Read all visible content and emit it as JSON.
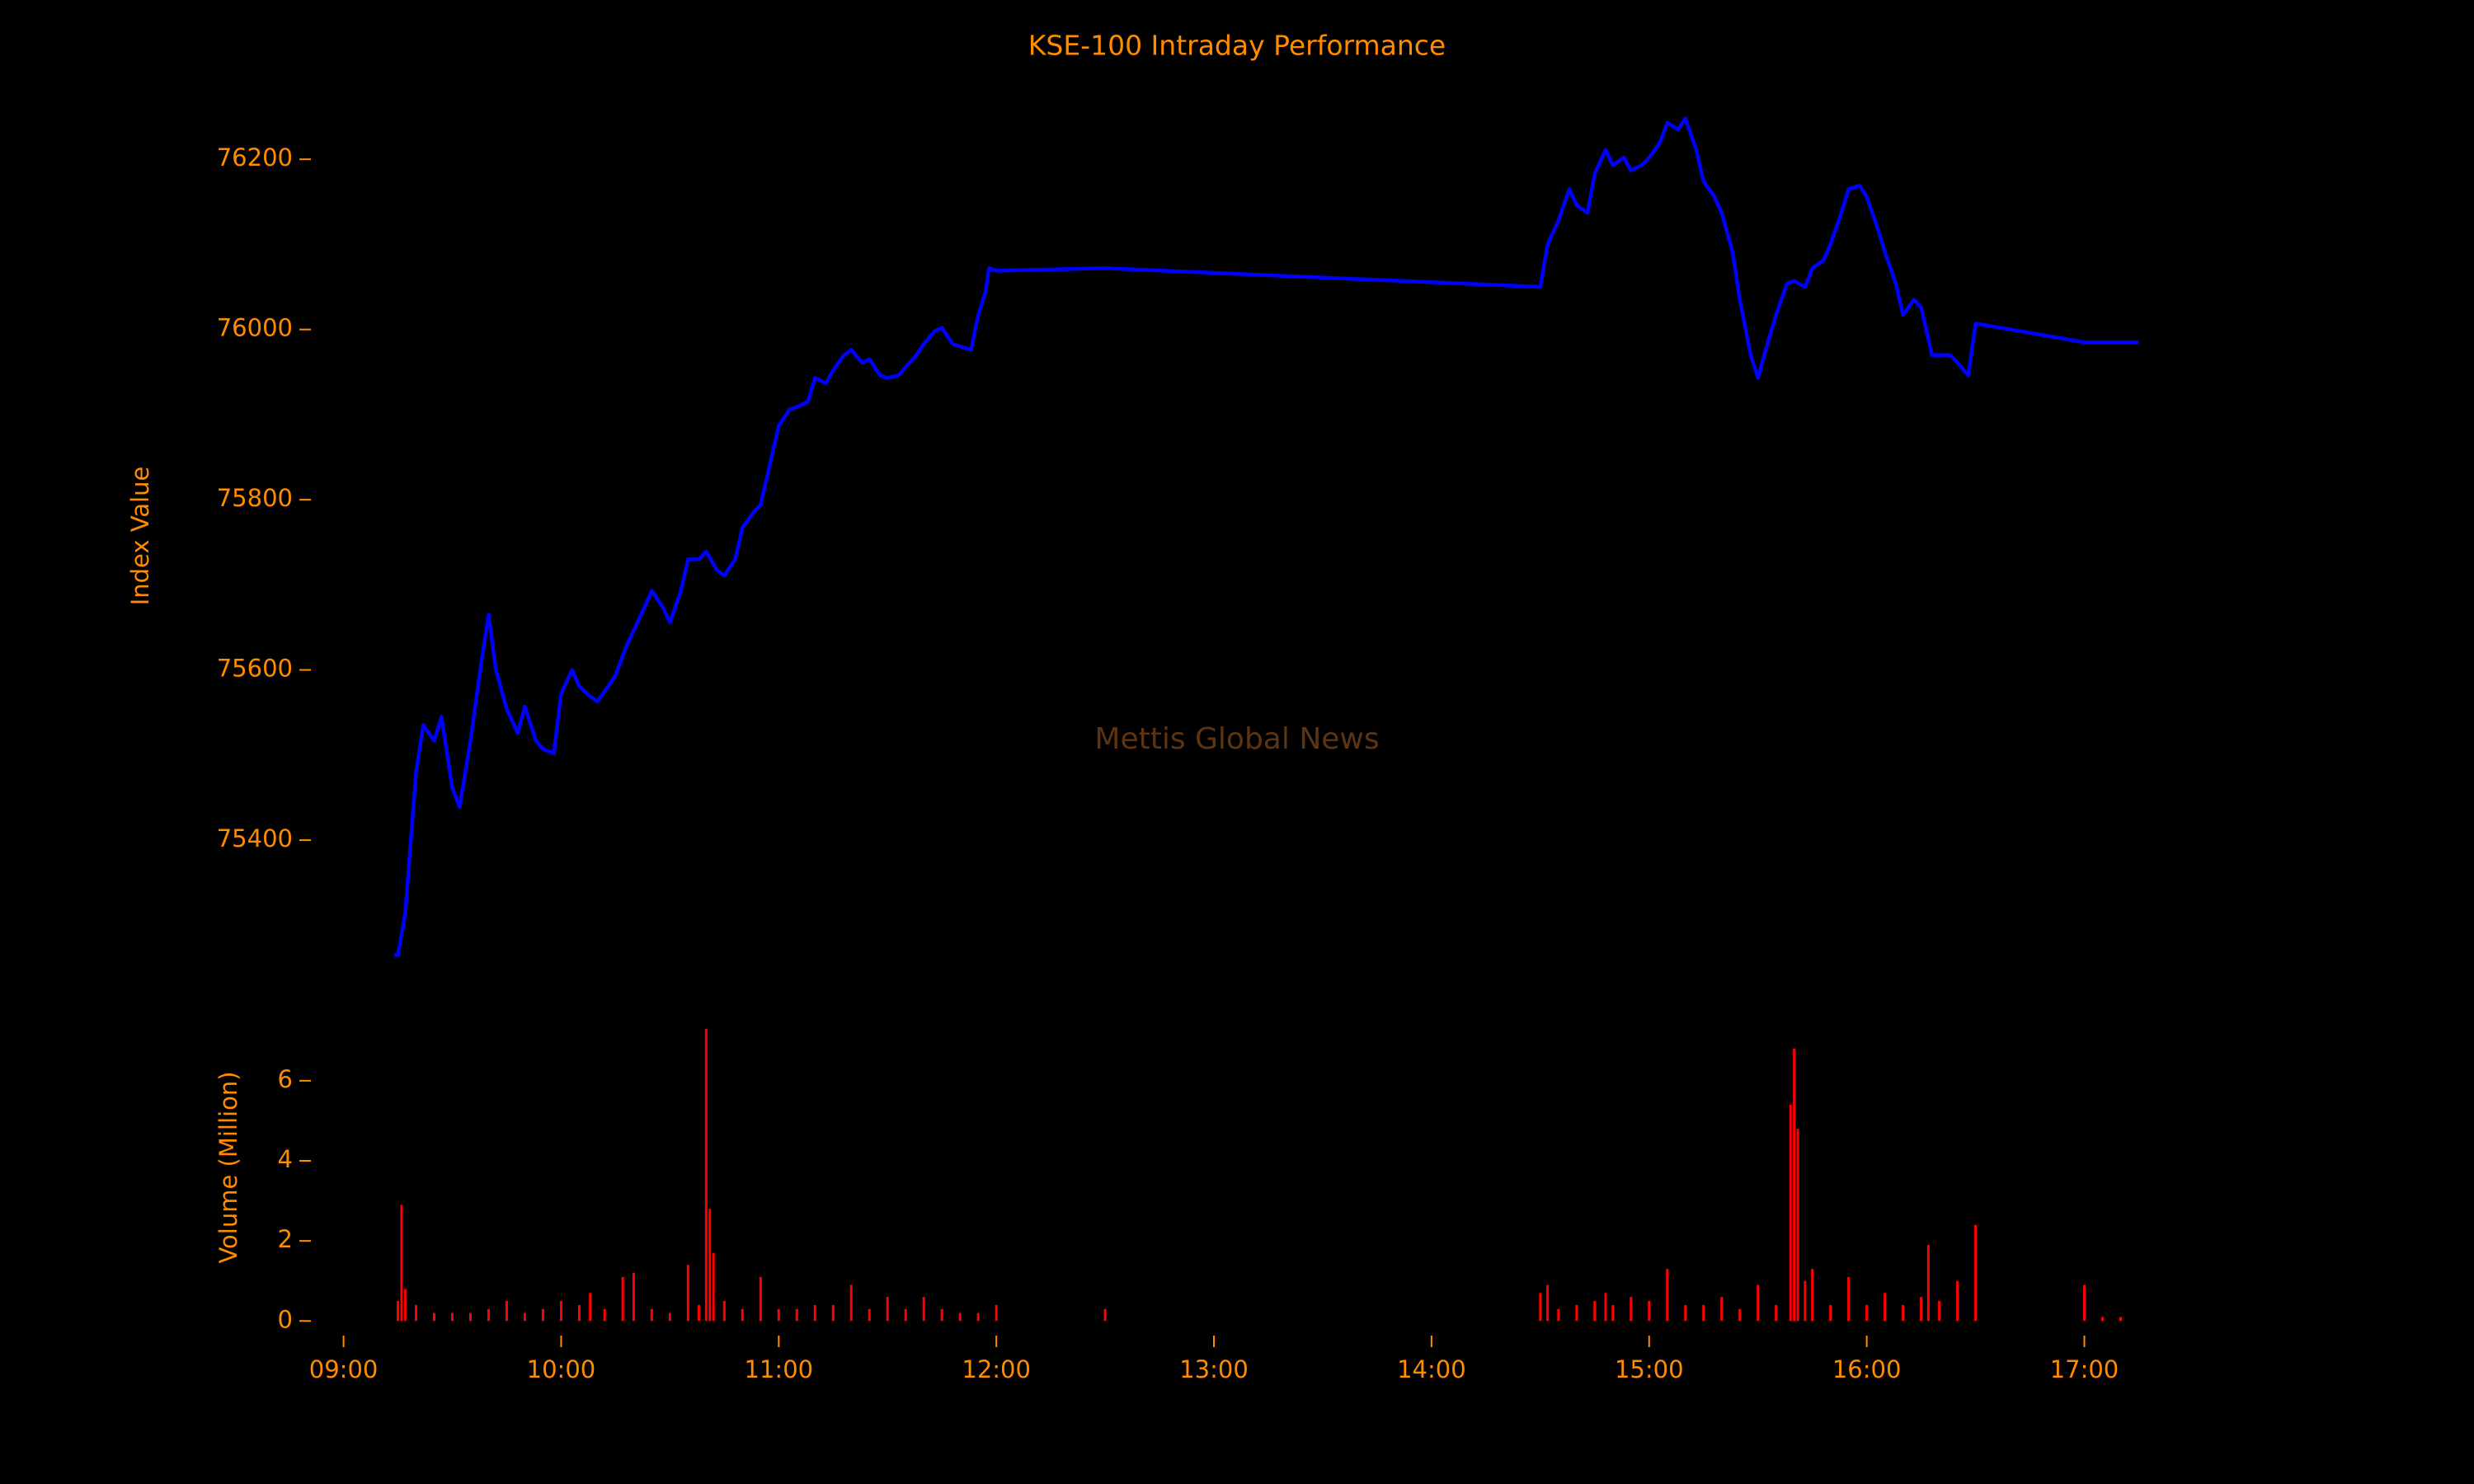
{
  "chart_data": [
    {
      "type": "line",
      "title": "KSE-100 Intraday Performance",
      "ylabel": "Index Value",
      "watermark": "Mettis Global News",
      "xlim": [
        "08:51",
        "17:39"
      ],
      "ylim": [
        75216,
        76299
      ],
      "yticks": [
        75400,
        75600,
        75800,
        76000,
        76200
      ],
      "x": [
        "09:14",
        "09:15",
        "09:17",
        "09:20",
        "09:22",
        "09:25",
        "09:27",
        "09:30",
        "09:32",
        "09:35",
        "09:38",
        "09:40",
        "09:42",
        "09:45",
        "09:48",
        "09:50",
        "09:53",
        "09:55",
        "09:58",
        "10:00",
        "10:03",
        "10:05",
        "10:08",
        "10:10",
        "10:13",
        "10:15",
        "10:18",
        "10:20",
        "10:23",
        "10:25",
        "10:28",
        "10:30",
        "10:33",
        "10:35",
        "10:38",
        "10:40",
        "10:43",
        "10:45",
        "10:48",
        "10:50",
        "10:53",
        "10:55",
        "10:58",
        "11:00",
        "11:03",
        "11:05",
        "11:08",
        "11:10",
        "11:13",
        "11:15",
        "11:18",
        "11:20",
        "11:23",
        "11:25",
        "11:28",
        "11:30",
        "11:33",
        "11:35",
        "11:38",
        "11:40",
        "11:43",
        "11:45",
        "11:48",
        "11:50",
        "11:53",
        "11:55",
        "11:57",
        "11:58",
        "12:00",
        "12:30",
        "14:30",
        "14:32",
        "14:35",
        "14:38",
        "14:40",
        "14:43",
        "14:45",
        "14:48",
        "14:50",
        "14:53",
        "14:55",
        "14:58",
        "15:00",
        "15:03",
        "15:05",
        "15:08",
        "15:10",
        "15:13",
        "15:15",
        "15:18",
        "15:20",
        "15:23",
        "15:25",
        "15:28",
        "15:30",
        "15:33",
        "15:35",
        "15:38",
        "15:40",
        "15:43",
        "15:45",
        "15:48",
        "15:50",
        "15:53",
        "15:55",
        "15:58",
        "16:00",
        "16:03",
        "16:05",
        "16:08",
        "16:10",
        "16:13",
        "16:15",
        "16:18",
        "16:20",
        "16:23",
        "16:25",
        "16:28",
        "16:30",
        "17:00",
        "17:15"
      ],
      "series": [
        {
          "name": "KSE-100",
          "color": "#0000ff",
          "values": [
            75265,
            75265,
            75313,
            75480,
            75535,
            75517,
            75545,
            75461,
            75439,
            75517,
            75609,
            75665,
            75600,
            75554,
            75526,
            75557,
            75517,
            75507,
            75502,
            75572,
            75600,
            75581,
            75569,
            75563,
            75581,
            75594,
            75628,
            75646,
            75674,
            75693,
            75674,
            75656,
            75693,
            75730,
            75730,
            75739,
            75717,
            75711,
            75730,
            75767,
            75785,
            75794,
            75850,
            75887,
            75906,
            75909,
            75915,
            75943,
            75937,
            75952,
            75970,
            75976,
            75961,
            75965,
            75946,
            75943,
            75946,
            75956,
            75970,
            75983,
            75998,
            76002,
            75983,
            75980,
            75976,
            76017,
            76044,
            76072,
            76069,
            76072,
            76050,
            76100,
            76128,
            76165,
            76146,
            76137,
            76183,
            76211,
            76193,
            76202,
            76187,
            76193,
            76202,
            76220,
            76243,
            76235,
            76248,
            76211,
            76174,
            76156,
            76137,
            76091,
            76035,
            75970,
            75943,
            75989,
            76017,
            76054,
            76057,
            76050,
            76072,
            76081,
            76100,
            76137,
            76165,
            76169,
            76156,
            76119,
            76091,
            76054,
            76017,
            76035,
            76026,
            75970,
            75970,
            75970,
            75961,
            75946,
            76007,
            75985,
            75985
          ]
        }
      ]
    },
    {
      "type": "bar",
      "ylabel": "Volume (Million)",
      "color": "#ff0000",
      "xlim": [
        "08:51",
        "17:39"
      ],
      "xticks": [
        "09:00",
        "10:00",
        "11:00",
        "12:00",
        "13:00",
        "14:00",
        "15:00",
        "16:00",
        "17:00"
      ],
      "ylim": [
        -0.365,
        7.665
      ],
      "yticks": [
        0,
        2,
        4,
        6
      ],
      "x": [
        "09:15",
        "09:16",
        "09:17",
        "09:20",
        "09:25",
        "09:30",
        "09:35",
        "09:40",
        "09:45",
        "09:50",
        "09:55",
        "10:00",
        "10:05",
        "10:08",
        "10:12",
        "10:17",
        "10:20",
        "10:25",
        "10:30",
        "10:35",
        "10:38",
        "10:40",
        "10:41",
        "10:42",
        "10:45",
        "10:50",
        "10:55",
        "11:00",
        "11:05",
        "11:10",
        "11:15",
        "11:20",
        "11:25",
        "11:30",
        "11:35",
        "11:40",
        "11:45",
        "11:50",
        "11:55",
        "12:00",
        "12:30",
        "14:30",
        "14:32",
        "14:35",
        "14:40",
        "14:45",
        "14:48",
        "14:50",
        "14:55",
        "15:00",
        "15:05",
        "15:10",
        "15:15",
        "15:20",
        "15:25",
        "15:30",
        "15:35",
        "15:39",
        "15:40",
        "15:41",
        "15:43",
        "15:45",
        "15:50",
        "15:55",
        "16:00",
        "16:05",
        "16:10",
        "16:15",
        "16:17",
        "16:20",
        "16:25",
        "16:30",
        "17:00",
        "17:05",
        "17:10"
      ],
      "values": [
        0.5,
        2.9,
        0.8,
        0.4,
        0.2,
        0.2,
        0.2,
        0.3,
        0.5,
        0.2,
        0.3,
        0.5,
        0.4,
        0.7,
        0.3,
        1.1,
        1.2,
        0.3,
        0.2,
        1.4,
        0.4,
        7.3,
        2.8,
        1.7,
        0.5,
        0.3,
        1.1,
        0.3,
        0.3,
        0.4,
        0.4,
        0.9,
        0.3,
        0.6,
        0.3,
        0.6,
        0.3,
        0.2,
        0.2,
        0.4,
        0.3,
        0.7,
        0.9,
        0.3,
        0.4,
        0.5,
        0.7,
        0.4,
        0.6,
        0.5,
        1.3,
        0.4,
        0.4,
        0.6,
        0.3,
        0.9,
        0.4,
        5.4,
        6.8,
        4.8,
        1.0,
        1.3,
        0.4,
        1.1,
        0.4,
        0.7,
        0.4,
        0.6,
        1.9,
        0.5,
        1.0,
        2.4,
        0.9,
        0.1,
        0.1
      ]
    }
  ]
}
